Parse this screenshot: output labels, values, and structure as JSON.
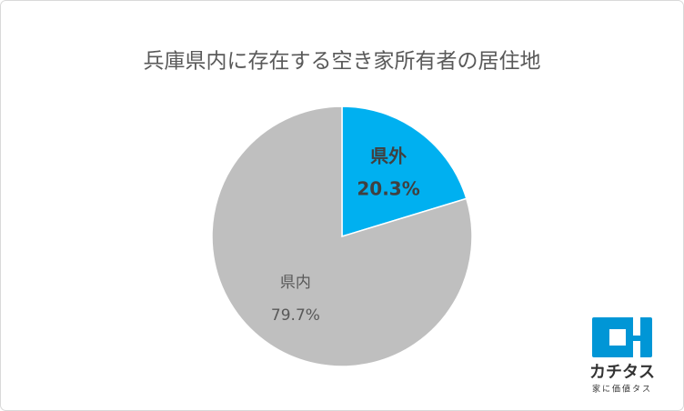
{
  "chart_data": {
    "type": "pie",
    "title": "兵庫県内に存在する空き家所有者の居住地",
    "categories": [
      "県外",
      "県内"
    ],
    "values": [
      20.3,
      79.7
    ],
    "value_labels": [
      "20.3%",
      "79.7%"
    ],
    "colors": [
      "#00b0f0",
      "#bfbfbf"
    ]
  },
  "logo": {
    "name": "カチタス",
    "tagline": "家に価値タス"
  }
}
